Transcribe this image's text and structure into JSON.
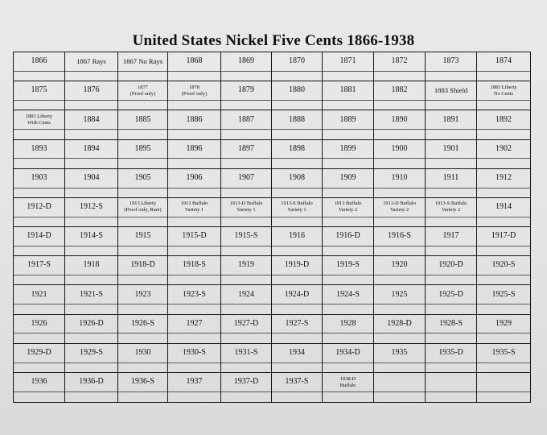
{
  "title": "United States Nickel Five Cents 1866-1938",
  "cells": [
    [
      "1866"
    ],
    [
      "1867 Rays"
    ],
    [
      "1867 No Rays"
    ],
    [
      "1868"
    ],
    [
      "1869"
    ],
    [
      "1870"
    ],
    [
      "1871"
    ],
    [
      "1872"
    ],
    [
      "1873"
    ],
    [
      "1874"
    ],
    [
      "1875"
    ],
    [
      "1876"
    ],
    [
      "1877",
      "(Proof only)"
    ],
    [
      "1878",
      "(Proof only)"
    ],
    [
      "1879"
    ],
    [
      "1880"
    ],
    [
      "1881"
    ],
    [
      "1882"
    ],
    [
      "1883 Shield"
    ],
    [
      "1883 Liberty",
      "No Cents"
    ],
    [
      "1883 Liberty",
      "With Cents"
    ],
    [
      "1884"
    ],
    [
      "1885"
    ],
    [
      "1886"
    ],
    [
      "1887"
    ],
    [
      "1888"
    ],
    [
      "1889"
    ],
    [
      "1890"
    ],
    [
      "1891"
    ],
    [
      "1892"
    ],
    [
      "1893"
    ],
    [
      "1894"
    ],
    [
      "1895"
    ],
    [
      "1896"
    ],
    [
      "1897"
    ],
    [
      "1898"
    ],
    [
      "1899"
    ],
    [
      "1900"
    ],
    [
      "1901"
    ],
    [
      "1902"
    ],
    [
      "1903"
    ],
    [
      "1904"
    ],
    [
      "1905"
    ],
    [
      "1906"
    ],
    [
      "1907"
    ],
    [
      "1908"
    ],
    [
      "1909"
    ],
    [
      "1910"
    ],
    [
      "1911"
    ],
    [
      "1912"
    ],
    [
      "1912-D"
    ],
    [
      "1912-S"
    ],
    [
      "1913 Liberty",
      "(Proof only, Rare)"
    ],
    [
      "1913 Buffalo",
      "Variety 1"
    ],
    [
      "1913-D Buffalo",
      "Variety 1"
    ],
    [
      "1913-S Buffalo",
      "Variety 1"
    ],
    [
      "1913 Buffalo",
      "Variety 2"
    ],
    [
      "1913-D Buffalo",
      "Variety 2"
    ],
    [
      "1913-S Buffalo",
      "Variety 2"
    ],
    [
      "1914"
    ],
    [
      "1914-D"
    ],
    [
      "1914-S"
    ],
    [
      "1915"
    ],
    [
      "1915-D"
    ],
    [
      "1915-S"
    ],
    [
      "1916"
    ],
    [
      "1916-D"
    ],
    [
      "1916-S"
    ],
    [
      "1917"
    ],
    [
      "1917-D"
    ],
    [
      "1917-S"
    ],
    [
      "1918"
    ],
    [
      "1918-D"
    ],
    [
      "1918-S"
    ],
    [
      "1919"
    ],
    [
      "1919-D"
    ],
    [
      "1919-S"
    ],
    [
      "1920"
    ],
    [
      "1920-D"
    ],
    [
      "1920-S"
    ],
    [
      "1921"
    ],
    [
      "1921-S"
    ],
    [
      "1923"
    ],
    [
      "1923-S"
    ],
    [
      "1924"
    ],
    [
      "1924-D"
    ],
    [
      "1924-S"
    ],
    [
      "1925"
    ],
    [
      "1925-D"
    ],
    [
      "1925-S"
    ],
    [
      "1926"
    ],
    [
      "1926-D"
    ],
    [
      "1926-S"
    ],
    [
      "1927"
    ],
    [
      "1927-D"
    ],
    [
      "1927-S"
    ],
    [
      "1928"
    ],
    [
      "1928-D"
    ],
    [
      "1928-S"
    ],
    [
      "1929"
    ],
    [
      "1929-D"
    ],
    [
      "1929-S"
    ],
    [
      "1930"
    ],
    [
      "1930-S"
    ],
    [
      "1931-S"
    ],
    [
      "1934"
    ],
    [
      "1934-D"
    ],
    [
      "1935"
    ],
    [
      "1935-D"
    ],
    [
      "1935-S"
    ],
    [
      "1936"
    ],
    [
      "1936-D"
    ],
    [
      "1936-S"
    ],
    [
      "1937"
    ],
    [
      "1937-D"
    ],
    [
      "1937-S"
    ],
    [
      "1938-D",
      "Buffalo"
    ],
    [],
    [],
    []
  ]
}
